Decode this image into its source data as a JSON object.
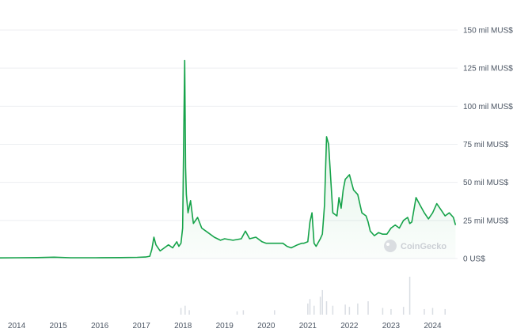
{
  "chart_data": {
    "type": "area",
    "title": "",
    "xlabel": "",
    "ylabel": "",
    "y_ticks": [
      "0 US$",
      "25 mil MUS$",
      "50 mil MUS$",
      "75 mil MUS$",
      "100 mil MUS$",
      "125 mil MUS$",
      "150 mil MUS$"
    ],
    "y_values": [
      0,
      25,
      50,
      75,
      100,
      125,
      150
    ],
    "x_ticks": [
      "2014",
      "2015",
      "2016",
      "2017",
      "2018",
      "2019",
      "2020",
      "2021",
      "2022",
      "2023",
      "2024"
    ],
    "x_tick_years": [
      2014,
      2015,
      2016,
      2017,
      2018,
      2019,
      2020,
      2021,
      2022,
      2023,
      2024
    ],
    "xlim": [
      2013.6,
      2024.6
    ],
    "ylim": [
      0,
      150
    ],
    "grid": true,
    "series": [
      {
        "color": "#16a34a",
        "x": [
          2013.6,
          2014.0,
          2014.5,
          2014.9,
          2015.3,
          2015.9,
          2016.5,
          2016.9,
          2017.1,
          2017.2,
          2017.25,
          2017.3,
          2017.35,
          2017.45,
          2017.55,
          2017.65,
          2017.75,
          2017.85,
          2017.9,
          2017.95,
          2017.99,
          2018.02,
          2018.04,
          2018.06,
          2018.08,
          2018.12,
          2018.18,
          2018.25,
          2018.35,
          2018.45,
          2018.6,
          2018.75,
          2018.9,
          2019.0,
          2019.2,
          2019.4,
          2019.5,
          2019.6,
          2019.75,
          2019.9,
          2020.0,
          2020.2,
          2020.4,
          2020.5,
          2020.6,
          2020.75,
          2020.85,
          2020.9,
          2021.0,
          2021.05,
          2021.1,
          2021.15,
          2021.2,
          2021.3,
          2021.35,
          2021.4,
          2021.45,
          2021.5,
          2021.6,
          2021.7,
          2021.75,
          2021.8,
          2021.85,
          2021.9,
          2022.0,
          2022.1,
          2022.2,
          2022.3,
          2022.4,
          2022.45,
          2022.5,
          2022.6,
          2022.7,
          2022.8,
          2022.9,
          2023.0,
          2023.1,
          2023.2,
          2023.3,
          2023.4,
          2023.45,
          2023.5,
          2023.6,
          2023.7,
          2023.8,
          2023.9,
          2024.0,
          2024.1,
          2024.2,
          2024.3,
          2024.4,
          2024.5,
          2024.55
        ],
        "values": [
          0.4,
          0.5,
          0.6,
          0.9,
          0.5,
          0.5,
          0.6,
          0.8,
          1.0,
          1.5,
          6,
          14,
          9,
          5,
          7,
          9,
          7,
          11,
          8,
          10,
          20,
          90,
          130,
          60,
          42,
          30,
          38,
          23,
          27,
          20,
          17,
          14,
          12,
          13,
          12,
          13,
          18,
          13,
          14,
          11,
          10,
          10,
          10,
          8,
          7,
          9,
          10,
          10,
          11,
          24,
          30,
          10,
          8,
          13,
          16,
          35,
          80,
          75,
          30,
          28,
          40,
          33,
          45,
          52,
          55,
          45,
          42,
          30,
          28,
          24,
          18,
          15,
          17,
          16,
          16,
          20,
          22,
          20,
          25,
          27,
          23,
          24,
          40,
          35,
          30,
          26,
          30,
          36,
          32,
          28,
          30,
          27,
          22
        ]
      }
    ],
    "watermark": "CoinGecko",
    "volume_bars": [
      {
        "x": 2017.95,
        "v": 6
      },
      {
        "x": 2018.05,
        "v": 8
      },
      {
        "x": 2018.15,
        "v": 4
      },
      {
        "x": 2019.3,
        "v": 3
      },
      {
        "x": 2019.45,
        "v": 4
      },
      {
        "x": 2020.2,
        "v": 4
      },
      {
        "x": 2021.0,
        "v": 10
      },
      {
        "x": 2021.05,
        "v": 14
      },
      {
        "x": 2021.15,
        "v": 8
      },
      {
        "x": 2021.3,
        "v": 16
      },
      {
        "x": 2021.35,
        "v": 22
      },
      {
        "x": 2021.45,
        "v": 12
      },
      {
        "x": 2021.6,
        "v": 8
      },
      {
        "x": 2021.9,
        "v": 9
      },
      {
        "x": 2022.0,
        "v": 7
      },
      {
        "x": 2022.2,
        "v": 10
      },
      {
        "x": 2022.45,
        "v": 12
      },
      {
        "x": 2022.8,
        "v": 6
      },
      {
        "x": 2023.0,
        "v": 5
      },
      {
        "x": 2023.3,
        "v": 7
      },
      {
        "x": 2023.45,
        "v": 34
      },
      {
        "x": 2023.8,
        "v": 5
      },
      {
        "x": 2024.0,
        "v": 6
      },
      {
        "x": 2024.3,
        "v": 5
      }
    ]
  }
}
